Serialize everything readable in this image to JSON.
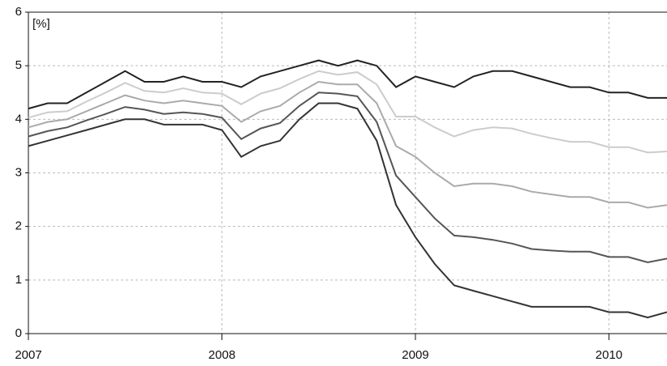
{
  "chart_data": {
    "type": "line",
    "annotation": "[%]",
    "x": [
      2007.0,
      2007.1,
      2007.2,
      2007.3,
      2007.4,
      2007.5,
      2007.6,
      2007.7,
      2007.8,
      2007.9,
      2008.0,
      2008.1,
      2008.2,
      2008.3,
      2008.4,
      2008.5,
      2008.6,
      2008.7,
      2008.8,
      2008.9,
      2009.0,
      2009.1,
      2009.2,
      2009.3,
      2009.4,
      2009.5,
      2009.6,
      2009.7,
      2009.8,
      2009.9,
      2010.0,
      2010.1,
      2010.2,
      2010.3
    ],
    "series": [
      {
        "color": "#333333",
        "values": [
          3.5,
          3.6,
          3.7,
          3.8,
          3.9,
          4.0,
          4.0,
          3.9,
          3.9,
          3.9,
          3.8,
          3.3,
          3.5,
          3.6,
          4.0,
          4.3,
          4.3,
          4.2,
          3.6,
          2.4,
          1.8,
          1.3,
          0.9,
          0.8,
          0.7,
          0.6,
          0.5,
          0.5,
          0.5,
          0.5,
          0.4,
          0.4,
          0.3,
          0.4
        ]
      },
      {
        "color": "#555555",
        "values": [
          3.68,
          3.78,
          3.85,
          3.98,
          4.1,
          4.23,
          4.18,
          4.1,
          4.13,
          4.1,
          4.03,
          3.63,
          3.83,
          3.93,
          4.25,
          4.5,
          4.48,
          4.43,
          3.95,
          2.95,
          2.55,
          2.15,
          1.83,
          1.8,
          1.75,
          1.68,
          1.58,
          1.55,
          1.53,
          1.53,
          1.43,
          1.43,
          1.33,
          1.4
        ]
      },
      {
        "color": "#aaaaaa",
        "values": [
          3.85,
          3.95,
          4.0,
          4.15,
          4.3,
          4.45,
          4.35,
          4.3,
          4.35,
          4.3,
          4.25,
          3.95,
          4.15,
          4.25,
          4.5,
          4.7,
          4.65,
          4.65,
          4.3,
          3.5,
          3.3,
          3.0,
          2.75,
          2.8,
          2.8,
          2.75,
          2.65,
          2.6,
          2.55,
          2.55,
          2.45,
          2.45,
          2.35,
          2.4
        ]
      },
      {
        "color": "#cccccc",
        "values": [
          4.03,
          4.13,
          4.15,
          4.33,
          4.5,
          4.68,
          4.53,
          4.5,
          4.58,
          4.5,
          4.48,
          4.28,
          4.48,
          4.58,
          4.75,
          4.9,
          4.83,
          4.88,
          4.65,
          4.05,
          4.05,
          3.85,
          3.68,
          3.8,
          3.85,
          3.83,
          3.73,
          3.65,
          3.58,
          3.58,
          3.48,
          3.48,
          3.38,
          3.4
        ]
      },
      {
        "color": "#222222",
        "values": [
          4.2,
          4.3,
          4.3,
          4.5,
          4.7,
          4.9,
          4.7,
          4.7,
          4.8,
          4.7,
          4.7,
          4.6,
          4.8,
          4.9,
          5.0,
          5.1,
          5.0,
          5.1,
          5.0,
          4.6,
          4.8,
          4.7,
          4.6,
          4.8,
          4.9,
          4.9,
          4.8,
          4.7,
          4.6,
          4.6,
          4.5,
          4.5,
          4.4,
          4.4
        ]
      }
    ],
    "xlim": [
      2007,
      2010.3
    ],
    "ylim": [
      0,
      6
    ],
    "xticks": [
      2007,
      2008,
      2009,
      2010
    ],
    "yticks": [
      0,
      1,
      2,
      3,
      4,
      5,
      6
    ],
    "grid": true
  }
}
